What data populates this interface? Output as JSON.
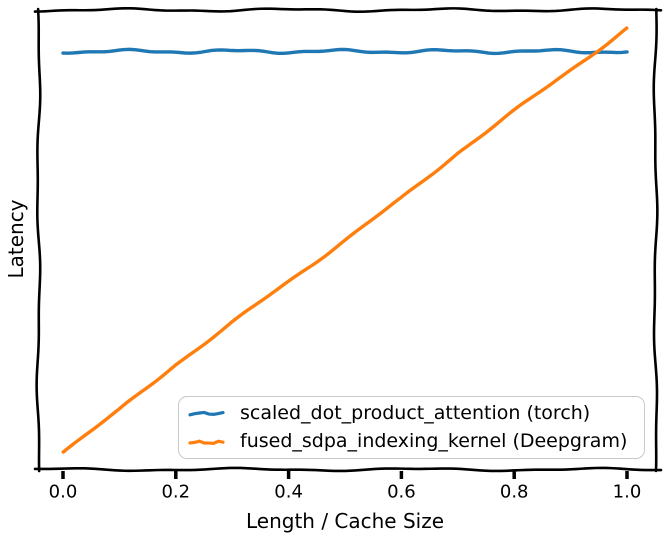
{
  "figure": {
    "background": "#ffffff",
    "style": "hand-drawn xkcd-like matplotlib line plot, no grid, no title"
  },
  "chart_data": {
    "type": "line",
    "title": "",
    "xlabel": "Length / Cache Size",
    "ylabel": "Latency",
    "x": [
      0.0,
      0.1,
      0.2,
      0.3,
      0.4,
      0.5,
      0.6,
      0.7,
      0.8,
      0.9,
      1.0
    ],
    "series": [
      {
        "name": "scaled_dot_product_attention (torch)",
        "color": "#1f77b4",
        "values": [
          0.91,
          0.91,
          0.91,
          0.91,
          0.91,
          0.91,
          0.91,
          0.91,
          0.91,
          0.91,
          0.91
        ]
      },
      {
        "name": "fused_sdpa_indexing_kernel (Deepgram)",
        "color": "#ff7f0e",
        "values": [
          0.04,
          0.13,
          0.23,
          0.32,
          0.41,
          0.5,
          0.59,
          0.69,
          0.78,
          0.87,
          0.96
        ]
      }
    ],
    "xlim": [
      0.0,
      1.0
    ],
    "ylim": [
      0.0,
      1.0
    ],
    "y_scale_note": "no numeric y ticks shown; values are relative latency",
    "xticks": [
      0.0,
      0.2,
      0.4,
      0.6,
      0.8,
      1.0
    ],
    "xtick_labels": [
      "0.0",
      "0.2",
      "0.4",
      "0.6",
      "0.8",
      "1.0"
    ],
    "ytick_labels": [],
    "grid": false,
    "legend": {
      "position": "lower right",
      "entries": [
        "scaled_dot_product_attention (torch)",
        "fused_sdpa_indexing_kernel (Deepgram)"
      ]
    }
  },
  "colors": {
    "axes": "#000000",
    "text": "#000000",
    "legend_border": "#c9c9c9",
    "series_torch": "#1f77b4",
    "series_deepgram": "#ff7f0e"
  }
}
